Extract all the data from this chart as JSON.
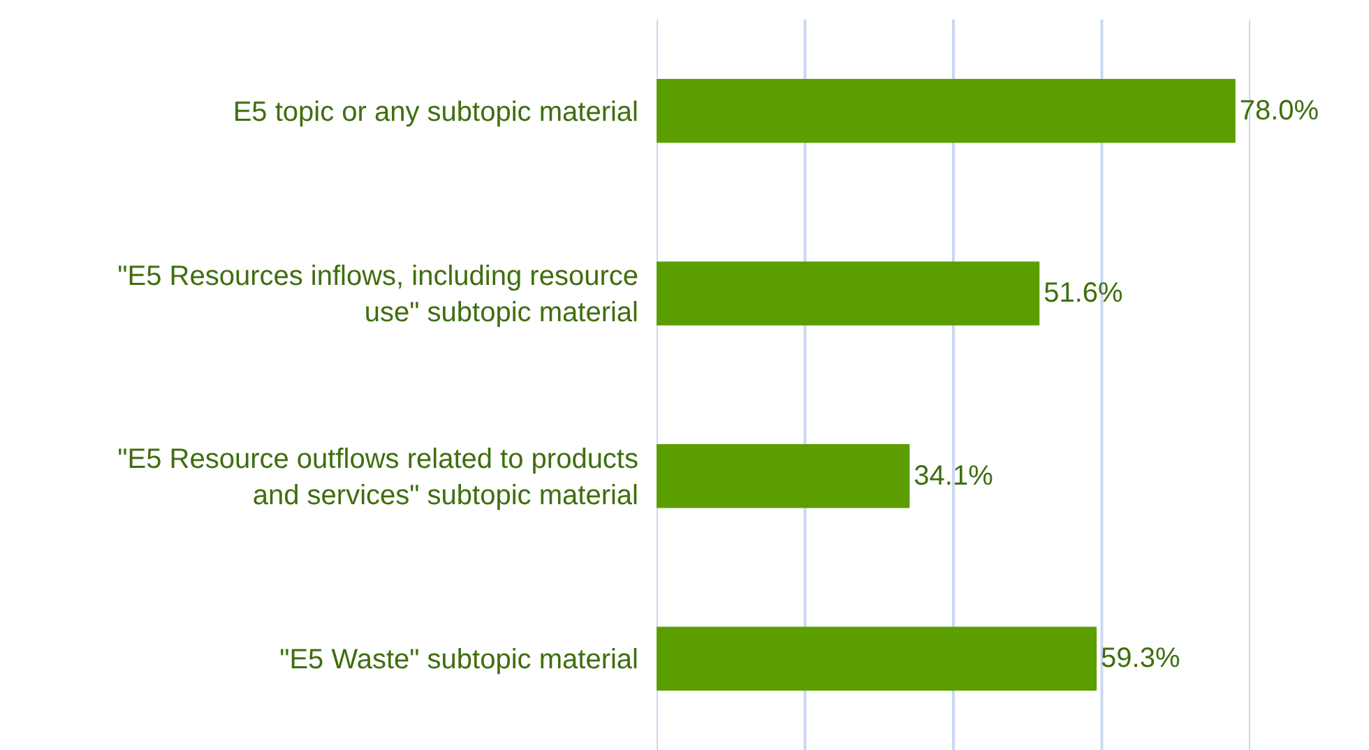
{
  "chart_data": {
    "type": "bar",
    "orientation": "horizontal",
    "categories": [
      "E5 topic or any subtopic material",
      "\"E5 Resources inflows, including resource use\" subtopic material",
      "\"E5 Resource outflows related to products and services\" subtopic material",
      "\"E5 Waste\" subtopic material"
    ],
    "values": [
      78.0,
      51.6,
      34.1,
      59.3
    ],
    "value_labels": [
      "78.0%",
      "51.6%",
      "34.1%",
      "59.3%"
    ],
    "color": "#5b9e00",
    "xlim": [
      0,
      80
    ],
    "xticks": [
      {
        "value": 0,
        "label": null
      },
      {
        "value": 20,
        "label": null
      },
      {
        "value": 40,
        "label": null
      },
      {
        "value": 60,
        "label": null
      },
      {
        "value": 80,
        "label": null
      }
    ],
    "grid": "x",
    "legend": false
  }
}
